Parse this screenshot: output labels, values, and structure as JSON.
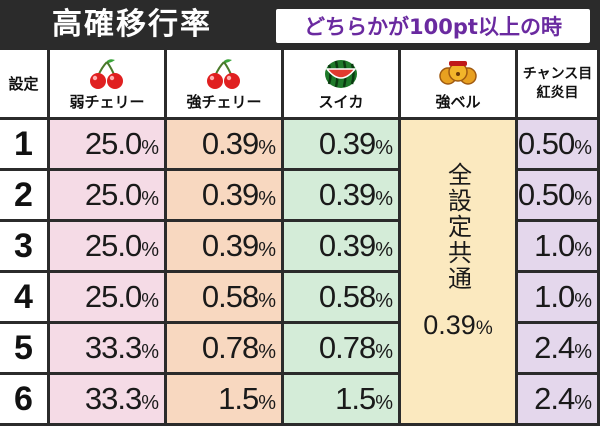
{
  "header": {
    "title": "高確移行率",
    "subtitle": "どちらかが100pt以上の時"
  },
  "columns": {
    "settei": "設定",
    "weak_cherry": "弱チェリー",
    "strong_cherry": "強チェリー",
    "watermelon": "スイカ",
    "strong_bell": "強ベル",
    "chance_line1": "チャンス目",
    "chance_line2": "紅炎目"
  },
  "rows": [
    {
      "setting": "1",
      "weak_cherry": "25.0",
      "strong_cherry": "0.39",
      "watermelon": "0.39",
      "chance": "0.50"
    },
    {
      "setting": "2",
      "weak_cherry": "25.0",
      "strong_cherry": "0.39",
      "watermelon": "0.39",
      "chance": "0.50"
    },
    {
      "setting": "3",
      "weak_cherry": "25.0",
      "strong_cherry": "0.39",
      "watermelon": "0.39",
      "chance": "1.0"
    },
    {
      "setting": "4",
      "weak_cherry": "25.0",
      "strong_cherry": "0.58",
      "watermelon": "0.58",
      "chance": "1.0"
    },
    {
      "setting": "5",
      "weak_cherry": "33.3",
      "strong_cherry": "0.78",
      "watermelon": "0.78",
      "chance": "2.4"
    },
    {
      "setting": "6",
      "weak_cherry": "33.3",
      "strong_cherry": "1.5",
      "watermelon": "1.5",
      "chance": "2.4"
    }
  ],
  "strong_bell_common": {
    "label": "全設定共通",
    "value": "0.39"
  },
  "percent_sign": "%",
  "icons": {
    "weak_cherry": "cherry-icon",
    "strong_cherry": "cherry-icon",
    "watermelon": "watermelon-icon",
    "strong_bell": "bell-icon"
  },
  "colors": {
    "background": "#2b2b2b",
    "subtitle_text": "#6a2aa0",
    "weak_cherry_bg": "#f5dbe6",
    "strong_cherry_bg": "#f8d8c0",
    "watermelon_bg": "#d4ecd8",
    "strong_bell_bg": "#fbe9bf",
    "chance_bg": "#e4d7ec"
  }
}
